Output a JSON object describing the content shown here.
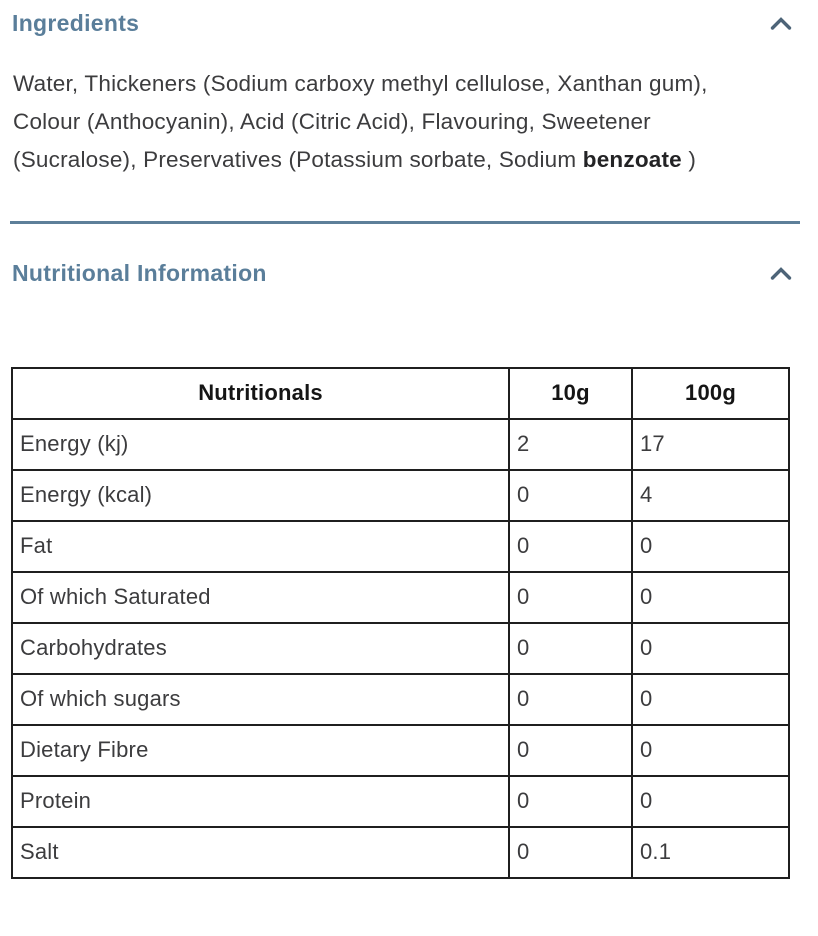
{
  "colors": {
    "heading_text": "#5a7e9a",
    "chevron": "#4d6478",
    "body_text": "#3c3c3e",
    "divider": "#5d7f99",
    "table_border": "#1f1f1f",
    "table_header_text": "#151515",
    "background": "#ffffff"
  },
  "ingredients_section": {
    "title": "Ingredients",
    "chevron_icon": "chevron-up",
    "text_before_bold": "Water, Thickeners (Sodium carboxy methyl cellulose, Xanthan gum), Colour (Anthocyanin), Acid (Citric Acid), Flavouring, Sweetener (Sucralose), Preservatives (Potassium sorbate, Sodium ",
    "text_bold": "benzoate",
    "text_after_bold": " )"
  },
  "nutrition_section": {
    "title": "Nutritional Information",
    "chevron_icon": "chevron-up",
    "table": {
      "headers": [
        "Nutritionals",
        "10g",
        "100g"
      ],
      "rows": [
        [
          "Energy (kj)",
          "2",
          "17"
        ],
        [
          "Energy (kcal)",
          "0",
          "4"
        ],
        [
          "Fat",
          "0",
          "0"
        ],
        [
          "Of which Saturated",
          "0",
          "0"
        ],
        [
          "Carbohydrates",
          "0",
          "0"
        ],
        [
          "Of which sugars",
          "0",
          "0"
        ],
        [
          "Dietary Fibre",
          "0",
          "0"
        ],
        [
          "Protein",
          "0",
          "0"
        ],
        [
          "Salt",
          "0",
          "0.1"
        ]
      ]
    }
  }
}
